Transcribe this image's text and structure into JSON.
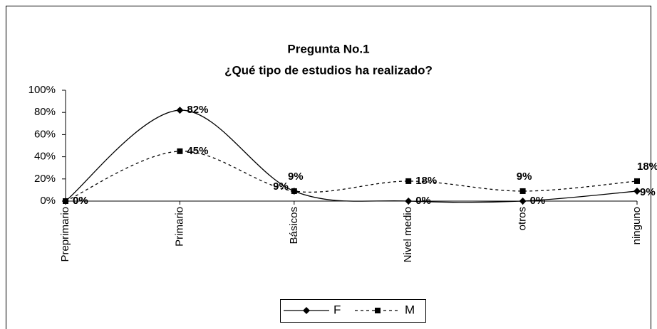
{
  "chart_data": {
    "type": "line",
    "title": "Pregunta No.1",
    "subtitle": "¿Qué tipo de estudios ha realizado?",
    "categories": [
      "Preprimario",
      "Primario",
      "Básicos",
      "Nivel medio",
      "otros",
      "ninguno"
    ],
    "series": [
      {
        "name": "F",
        "color": "#000000",
        "marker": "diamond",
        "dash": "solid",
        "values": [
          0,
          82,
          9,
          0,
          0,
          9
        ],
        "value_labels": [
          "0%",
          "82%",
          "9%",
          "0%",
          "0%",
          "9%"
        ]
      },
      {
        "name": "M",
        "color": "#000000",
        "marker": "square",
        "dash": "dashed",
        "values": [
          0,
          45,
          9,
          18,
          9,
          18
        ],
        "value_labels": [
          "0%",
          "45%",
          "9%",
          "18%",
          "9%",
          "18%"
        ]
      }
    ],
    "ylim": [
      0,
      100
    ],
    "yticks": [
      {
        "value": 0,
        "label": "0%"
      },
      {
        "value": 20,
        "label": "20%"
      },
      {
        "value": 40,
        "label": "40%"
      },
      {
        "value": 60,
        "label": "60%"
      },
      {
        "value": 80,
        "label": "80%"
      },
      {
        "value": 100,
        "label": "100%"
      }
    ],
    "legend": "bottom",
    "smooth": true
  }
}
